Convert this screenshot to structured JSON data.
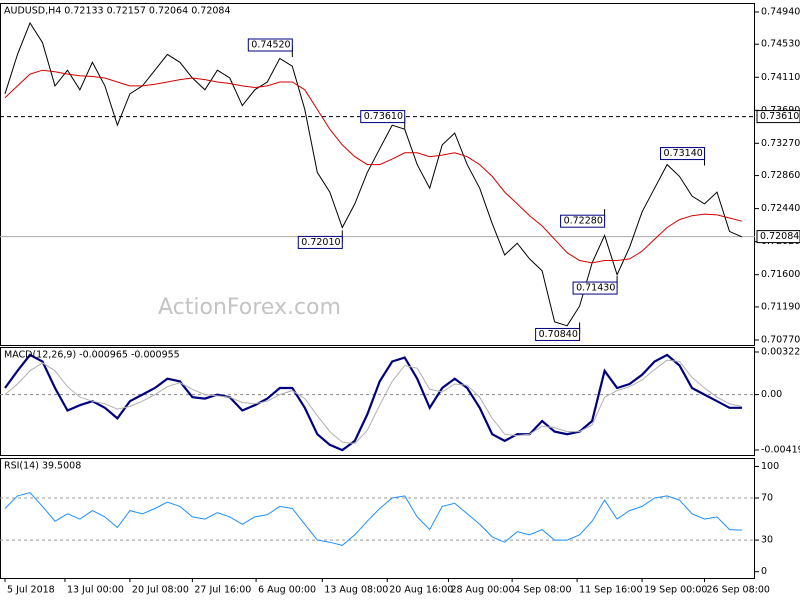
{
  "chart_data": [
    {
      "type": "line",
      "title": "AUDUSD,H4  0.72133 0.72157 0.72064 0.72084",
      "watermark": "ActionForex.com",
      "xlim": [
        0,
        59
      ],
      "ylim": [
        0.70706,
        0.75054
      ],
      "yticks": [
        {
          "value": 0.7494,
          "label": "0.74940"
        },
        {
          "value": 0.7453,
          "label": "0.74530"
        },
        {
          "value": 0.7411,
          "label": "0.74110"
        },
        {
          "value": 0.7369,
          "label": "0.73690"
        },
        {
          "value": 0.7327,
          "label": "0.73270"
        },
        {
          "value": 0.7286,
          "label": "0.72860"
        },
        {
          "value": 0.7244,
          "label": "0.72440"
        },
        {
          "value": 0.7202,
          "label": "0.72020"
        },
        {
          "value": 0.716,
          "label": "0.71600"
        },
        {
          "value": 0.7119,
          "label": "0.71190"
        },
        {
          "value": 0.7077,
          "label": "0.70770"
        }
      ],
      "series": [
        {
          "color": "#000000",
          "values": [
            0.739,
            0.744,
            0.748,
            0.7455,
            0.74,
            0.742,
            0.7395,
            0.743,
            0.74,
            0.735,
            0.739,
            0.74,
            0.742,
            0.744,
            0.743,
            0.741,
            0.7395,
            0.742,
            0.741,
            0.7375,
            0.7395,
            0.7405,
            0.7435,
            0.7425,
            0.737,
            0.729,
            0.7265,
            0.722,
            0.725,
            0.729,
            0.732,
            0.735,
            0.7345,
            0.73,
            0.727,
            0.7325,
            0.734,
            0.73,
            0.727,
            0.7225,
            0.7185,
            0.72,
            0.718,
            0.7165,
            0.71,
            0.7095,
            0.712,
            0.7175,
            0.721,
            0.716,
            0.7195,
            0.724,
            0.727,
            0.73,
            0.7285,
            0.726,
            0.725,
            0.7265,
            0.7215,
            0.7208
          ]
        },
        {
          "color": "#d40000",
          "values": [
            0.7385,
            0.74,
            0.7415,
            0.742,
            0.7418,
            0.7415,
            0.7413,
            0.7412,
            0.741,
            0.7405,
            0.74,
            0.74,
            0.7402,
            0.7405,
            0.7408,
            0.741,
            0.7408,
            0.7405,
            0.7403,
            0.74,
            0.7398,
            0.74,
            0.7405,
            0.7405,
            0.7395,
            0.737,
            0.7345,
            0.7325,
            0.731,
            0.73,
            0.73,
            0.7307,
            0.7315,
            0.7315,
            0.731,
            0.7312,
            0.7315,
            0.731,
            0.73,
            0.7285,
            0.7265,
            0.725,
            0.7235,
            0.7222,
            0.7205,
            0.7188,
            0.7178,
            0.7175,
            0.7178,
            0.7178,
            0.718,
            0.719,
            0.7205,
            0.722,
            0.723,
            0.7235,
            0.7237,
            0.7236,
            0.7232,
            0.7228
          ]
        }
      ],
      "levels": [
        {
          "value": 0.7361,
          "label": "0.73610",
          "style": "dashed"
        },
        {
          "value": 0.72084,
          "label": "0.72084",
          "style": "solid"
        }
      ],
      "annotations": [
        {
          "x": 23,
          "value": 0.7452,
          "label": "0.74520"
        },
        {
          "x": 32,
          "value": 0.7361,
          "label": "0.73610"
        },
        {
          "x": 27,
          "value": 0.7201,
          "label": "0.72010"
        },
        {
          "x": 48,
          "value": 0.7228,
          "label": "0.72280"
        },
        {
          "x": 49,
          "value": 0.7143,
          "label": "0.71430"
        },
        {
          "x": 56,
          "value": 0.7314,
          "label": "0.73140"
        },
        {
          "x": 46,
          "value": 0.7084,
          "label": "0.70840"
        }
      ]
    },
    {
      "type": "line",
      "title": "MACD(12,26,9) -0.000965 -0.000955",
      "xlim": [
        0,
        59
      ],
      "ylim": [
        -0.00457,
        0.0036
      ],
      "yticks": [
        0.003223,
        {
          "value": 0,
          "label": "0.00"
        },
        -0.004191
      ],
      "series": [
        {
          "color": "#000080",
          "width": 2.2,
          "values": [
            0.0005,
            0.0018,
            0.003,
            0.0025,
            0.0005,
            -0.0012,
            -0.0008,
            -0.0005,
            -0.001,
            -0.0018,
            -0.0005,
            0.0,
            0.0005,
            0.0012,
            0.001,
            -0.0002,
            -0.0003,
            0.0,
            -0.0002,
            -0.0012,
            -0.0008,
            -0.0003,
            0.0005,
            0.0005,
            -0.001,
            -0.003,
            -0.0038,
            -0.0042,
            -0.0035,
            -0.0015,
            0.001,
            0.0025,
            0.0028,
            0.0012,
            -0.001,
            0.0005,
            0.0012,
            0.0005,
            -0.001,
            -0.003,
            -0.0035,
            -0.003,
            -0.003,
            -0.002,
            -0.0028,
            -0.003,
            -0.0028,
            -0.002,
            0.0018,
            0.0005,
            0.0008,
            0.0015,
            0.0025,
            0.003,
            0.0022,
            0.0005,
            0.0,
            -0.0005,
            -0.001,
            -0.001
          ]
        },
        {
          "color": "#b0b0b0",
          "width": 1,
          "values": [
            0.0,
            0.0008,
            0.0018,
            0.0024,
            0.0018,
            0.0006,
            -0.0002,
            -0.0005,
            -0.0007,
            -0.0011,
            -0.0009,
            -0.0005,
            0.0,
            0.0006,
            0.0009,
            0.0004,
            0.0,
            -0.0001,
            -0.0002,
            -0.0006,
            -0.0007,
            -0.0005,
            0.0,
            0.0003,
            -0.0003,
            -0.0016,
            -0.0028,
            -0.0036,
            -0.0037,
            -0.0027,
            -0.0008,
            0.001,
            0.0022,
            0.002,
            0.0004,
            0.0002,
            0.0008,
            0.0007,
            -0.0002,
            -0.0018,
            -0.003,
            -0.0031,
            -0.003,
            -0.0024,
            -0.0025,
            -0.0028,
            -0.0028,
            -0.0023,
            -0.0002,
            0.0003,
            0.0006,
            0.0011,
            0.0019,
            0.0026,
            0.0025,
            0.0013,
            0.0005,
            -0.0002,
            -0.0007,
            -0.0009
          ]
        }
      ]
    },
    {
      "type": "line",
      "title": "RSI(14) 39.5008",
      "xlim": [
        0,
        59
      ],
      "ylim": [
        -6,
        108
      ],
      "yticks": [
        100,
        70,
        30,
        0
      ],
      "grid_levels": [
        70,
        30
      ],
      "xticks": [
        {
          "value": 0,
          "label": "5 Jul 2018"
        },
        {
          "value": 4.8,
          "label": "13 Jul 00:00"
        },
        {
          "value": 10,
          "label": "20 Jul 08:00"
        },
        {
          "value": 15,
          "label": "27 Jul 16:00"
        },
        {
          "value": 20.1,
          "label": "6 Aug 00:00"
        },
        {
          "value": 25.4,
          "label": "13 Aug 08:00"
        },
        {
          "value": 30.6,
          "label": "20 Aug 16:00"
        },
        {
          "value": 35.5,
          "label": "28 Aug 00:00"
        },
        {
          "value": 40.6,
          "label": "4 Sep 08:00"
        },
        {
          "value": 45.8,
          "label": "11 Sep 16:00"
        },
        {
          "value": 51,
          "label": "19 Sep 00:00"
        },
        {
          "value": 56,
          "label": "26 Sep 08:00"
        }
      ],
      "series": [
        {
          "color": "#1e90ff",
          "width": 1,
          "values": [
            60,
            72,
            75,
            62,
            48,
            55,
            50,
            58,
            52,
            42,
            58,
            55,
            60,
            66,
            62,
            52,
            50,
            56,
            52,
            45,
            52,
            54,
            62,
            60,
            45,
            30,
            28,
            25,
            35,
            48,
            60,
            70,
            72,
            52,
            40,
            62,
            65,
            55,
            45,
            33,
            28,
            38,
            35,
            40,
            30,
            30,
            35,
            48,
            68,
            50,
            58,
            62,
            70,
            72,
            68,
            55,
            50,
            52,
            40,
            39.5
          ]
        }
      ]
    }
  ]
}
